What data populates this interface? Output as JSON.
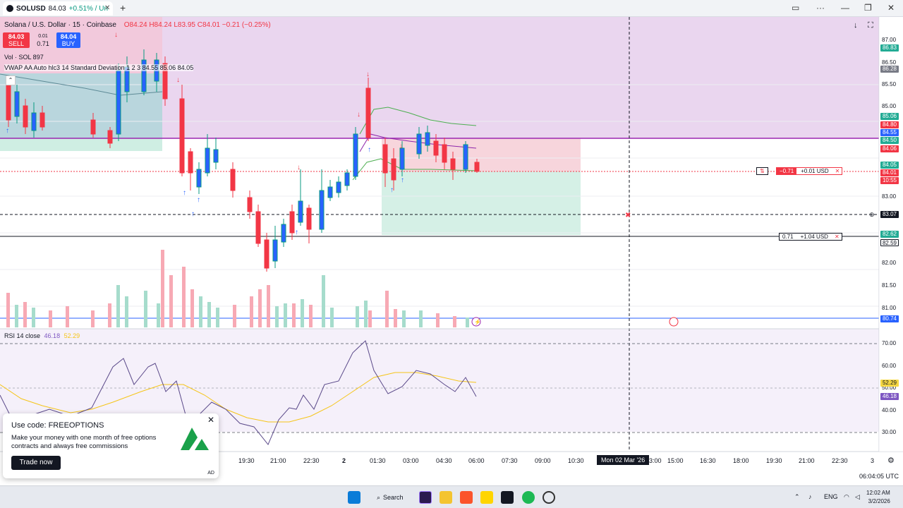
{
  "tab": {
    "symbol": "SOLUSD",
    "price": "84.03",
    "change": "+0.51% / Un"
  },
  "legend": {
    "title": "Solana / U.S. Dollar · 15 · Coinbase",
    "ohlc": "O84.24 H84.24 L83.95 C84.01 −0.21 (−0.25%)"
  },
  "trade": {
    "sell_price": "84.03",
    "sell_label": "SELL",
    "spread_top": "0.01",
    "spread_value": "0.71",
    "buy_price": "84.04",
    "buy_label": "BUY"
  },
  "indicators": {
    "volume": "Vol · SOL  897",
    "vwap": "VWAP AA Auto hlc3 14 Standard Deviation 1 2 3  84.55  85.06  84.05",
    "rsi_name": "RSI 14 close",
    "rsi_value": "46.18",
    "rsi_ma": "52.29"
  },
  "price_axis": [
    "87.00",
    "86.50",
    "86.00",
    "85.50",
    "85.00",
    "84.50",
    "84.00",
    "83.50",
    "83.00",
    "82.50",
    "82.00",
    "81.50",
    "81.00"
  ],
  "price_tags": [
    {
      "value": "86.83",
      "color": "#22ab94"
    },
    {
      "value": "86.28",
      "color": "#787b86"
    },
    {
      "value": "85.06",
      "color": "#22ab94"
    },
    {
      "value": "84.80",
      "color": "#f23645"
    },
    {
      "value": "84.55",
      "color": "#2962ff"
    },
    {
      "value": "84.50",
      "color": "#22ab94"
    },
    {
      "value": "84.06",
      "color": "#f23645"
    },
    {
      "value": "84.05",
      "color": "#22ab94"
    },
    {
      "value": "84.01",
      "color": "#f23645"
    },
    {
      "value": "10:55",
      "color": "#f23645"
    },
    {
      "value": "83.07",
      "color": "#131722"
    },
    {
      "value": "82.62",
      "color": "#22ab94"
    },
    {
      "value": "82.59",
      "color": "#ffffff"
    },
    {
      "value": "80.74",
      "color": "#2962ff"
    }
  ],
  "rsi_axis": [
    "70.00",
    "60.00",
    "50.00",
    "40.00",
    "30.00"
  ],
  "rsi_tags": [
    {
      "value": "52.29",
      "color": "#f5d742"
    },
    {
      "value": "46.18",
      "color": "#7e57c2"
    }
  ],
  "time_axis": [
    "19:30",
    "21:00",
    "22:30",
    "2",
    "01:30",
    "03:00",
    "04:30",
    "06:00",
    "07:30",
    "09:00",
    "10:30",
    "Mon 02 Mar '26",
    "13:00",
    "15:00",
    "16:30",
    "18:00",
    "19:30",
    "21:00",
    "22:30",
    "3"
  ],
  "positions": {
    "upper_qty": "−0.71",
    "upper_pnl": "+0.01 USD",
    "lower_qty": "0.71",
    "lower_pnl": "+1.04 USD"
  },
  "promo": {
    "heading": "Use code: FREEOPTIONS",
    "body": "Make your money with one month of free options contracts and always free commissions",
    "button": "Trade now",
    "ad": "AD"
  },
  "utc_time": "06:04:05 UTC",
  "taskbar": {
    "search": "Search",
    "lang": "ENG",
    "time": "12:02 AM",
    "date": "3/2/2026"
  }
}
